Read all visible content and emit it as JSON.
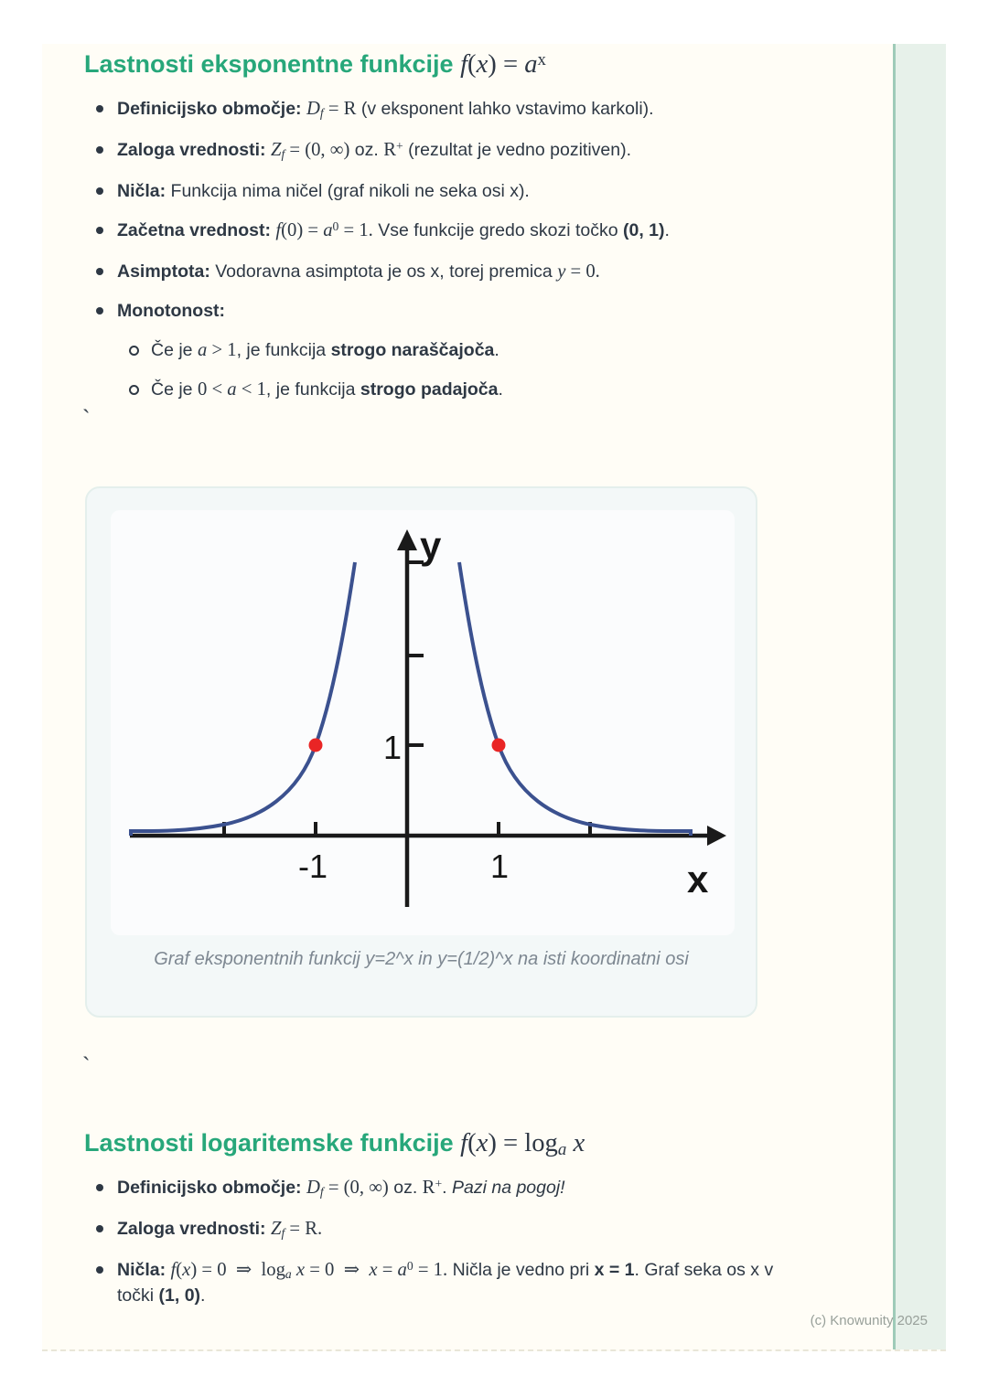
{
  "sections": [
    {
      "heading_label": "Lastnosti eksponentne funkcije ",
      "heading_math": [
        {
          "t": "f",
          "s": "mi"
        },
        {
          "t": "(",
          "s": "m"
        },
        {
          "t": "x",
          "s": "mi"
        },
        {
          "t": ") = ",
          "s": "m"
        },
        {
          "t": "a",
          "s": "mi"
        },
        {
          "t": "x",
          "s": "msup"
        }
      ],
      "bullets": [
        {
          "segments": [
            {
              "t": "Definicijsko območje: ",
              "s": "b"
            },
            {
              "t": "D",
              "s": "mi"
            },
            {
              "t": "f",
              "s": "misub"
            },
            {
              "t": " = R",
              "s": "m"
            },
            {
              "t": " (v eksponent lahko vstavimo karkoli).",
              "s": "r"
            }
          ]
        },
        {
          "segments": [
            {
              "t": "Zaloga vrednosti: ",
              "s": "b"
            },
            {
              "t": "Z",
              "s": "mi"
            },
            {
              "t": "f",
              "s": "misub"
            },
            {
              "t": " = (0, ∞)",
              "s": "m"
            },
            {
              "t": " oz. ",
              "s": "r"
            },
            {
              "t": "R",
              "s": "m"
            },
            {
              "t": "+",
              "s": "msup"
            },
            {
              "t": " (rezultat je vedno pozitiven).",
              "s": "r"
            }
          ]
        },
        {
          "segments": [
            {
              "t": "Ničla: ",
              "s": "b"
            },
            {
              "t": "Funkcija nima ničel (graf nikoli ne seka osi x).",
              "s": "r"
            }
          ]
        },
        {
          "segments": [
            {
              "t": "Začetna vrednost: ",
              "s": "b"
            },
            {
              "t": "f",
              "s": "mi"
            },
            {
              "t": "(0) = ",
              "s": "m"
            },
            {
              "t": "a",
              "s": "mi"
            },
            {
              "t": "0",
              "s": "msup"
            },
            {
              "t": " = 1.",
              "s": "m"
            },
            {
              "t": " Vse funkcije gredo skozi točko ",
              "s": "r"
            },
            {
              "t": "(0, 1)",
              "s": "b"
            },
            {
              "t": ".",
              "s": "r"
            }
          ]
        },
        {
          "segments": [
            {
              "t": "Asimptota: ",
              "s": "b"
            },
            {
              "t": "Vodoravna asimptota je os x, torej premica ",
              "s": "r"
            },
            {
              "t": "y",
              "s": "mi"
            },
            {
              "t": " = 0.",
              "s": "m"
            }
          ]
        },
        {
          "segments": [
            {
              "t": "Monotonost:",
              "s": "b"
            }
          ]
        },
        {
          "indent": 1,
          "segments": [
            {
              "t": "Če je ",
              "s": "r"
            },
            {
              "t": "a",
              "s": "mi"
            },
            {
              "t": " > 1",
              "s": "m"
            },
            {
              "t": ", je funkcija ",
              "s": "r"
            },
            {
              "t": "strogo naraščajoča",
              "s": "b"
            },
            {
              "t": ".",
              "s": "r"
            }
          ]
        },
        {
          "indent": 1,
          "segments": [
            {
              "t": "Če je ",
              "s": "r"
            },
            {
              "t": "0 < ",
              "s": "m"
            },
            {
              "t": "a",
              "s": "mi"
            },
            {
              "t": " < 1",
              "s": "m"
            },
            {
              "t": ", je funkcija ",
              "s": "r"
            },
            {
              "t": "strogo padajoča",
              "s": "b"
            },
            {
              "t": ".",
              "s": "r"
            }
          ]
        }
      ]
    },
    {
      "heading_label": "Lastnosti logaritemske funkcije ",
      "heading_math": [
        {
          "t": "f",
          "s": "mi"
        },
        {
          "t": "(",
          "s": "m"
        },
        {
          "t": "x",
          "s": "mi"
        },
        {
          "t": ") = log",
          "s": "m"
        },
        {
          "t": "a",
          "s": "misub"
        },
        {
          "t": " x",
          "s": "mi"
        }
      ],
      "bullets": [
        {
          "segments": [
            {
              "t": "Definicijsko območje: ",
              "s": "b"
            },
            {
              "t": "D",
              "s": "mi"
            },
            {
              "t": "f",
              "s": "misub"
            },
            {
              "t": " = (0, ∞)",
              "s": "m"
            },
            {
              "t": " oz. ",
              "s": "r"
            },
            {
              "t": "R",
              "s": "m"
            },
            {
              "t": "+",
              "s": "msup"
            },
            {
              "t": ". ",
              "s": "r"
            },
            {
              "t": "Pazi na pogoj!",
              "s": "i"
            }
          ]
        },
        {
          "segments": [
            {
              "t": "Zaloga vrednosti: ",
              "s": "b"
            },
            {
              "t": "Z",
              "s": "mi"
            },
            {
              "t": "f",
              "s": "misub"
            },
            {
              "t": " = R.",
              "s": "m"
            }
          ]
        },
        {
          "segments": [
            {
              "t": "Ničla: ",
              "s": "b"
            },
            {
              "t": "f",
              "s": "mi"
            },
            {
              "t": "(",
              "s": "m"
            },
            {
              "t": "x",
              "s": "mi"
            },
            {
              "t": ") = 0",
              "s": "m"
            },
            {
              "t": " ⇒ ",
              "s": "m"
            },
            {
              "t": "log",
              "s": "m"
            },
            {
              "t": "a",
              "s": "misub"
            },
            {
              "t": " x",
              "s": "mi"
            },
            {
              "t": " = 0",
              "s": "m"
            },
            {
              "t": " ⇒ ",
              "s": "m"
            },
            {
              "t": "x",
              "s": "mi"
            },
            {
              "t": " = ",
              "s": "m"
            },
            {
              "t": "a",
              "s": "mi"
            },
            {
              "t": "0",
              "s": "msup"
            },
            {
              "t": " = 1.",
              "s": "m"
            },
            {
              "t": " Ničla je vedno pri ",
              "s": "r"
            },
            {
              "t": "x = 1",
              "s": "b"
            },
            {
              "t": ". Graf seka os x v točki ",
              "s": "r"
            },
            {
              "t": "(1, 0)",
              "s": "b"
            },
            {
              "t": ".",
              "s": "r"
            }
          ]
        }
      ]
    }
  ],
  "stray_marks": [
    "`",
    "`"
  ],
  "figure": {
    "caption": "Graf eksponentnih funkcij y=2^x in y=(1/2)^x na isti koordinatni osi",
    "x_axis_label": "x",
    "y_axis_label": "y",
    "x_tick_label_neg1": "-1",
    "x_tick_label_pos1": "1",
    "y_tick_label_1": "1"
  },
  "chart_data": {
    "type": "line",
    "title": "",
    "caption": "Graf eksponentnih funkcij y=2^x in y=(1/2)^x na isti koordinatni osi",
    "xlabel": "x",
    "ylabel": "y",
    "xlim": [
      -3.2,
      3.5
    ],
    "ylim": [
      0,
      3.3
    ],
    "x_ticks": [
      -2,
      -1,
      1,
      2
    ],
    "x_tick_labels_shown": [
      "-1",
      "1"
    ],
    "y_ticks": [
      1,
      2,
      3
    ],
    "y_tick_labels_shown": [
      "1"
    ],
    "grid": false,
    "legend": "none",
    "series": [
      {
        "name": "y=2^x",
        "points": [
          [
            -3.0,
            0.06
          ],
          [
            -2.0,
            0.18
          ],
          [
            -1.5,
            0.45
          ],
          [
            -1.0,
            1.0
          ],
          [
            -0.8,
            1.6
          ],
          [
            -0.6,
            3.0
          ]
        ]
      },
      {
        "name": "y=(1/2)^x",
        "points": [
          [
            0.6,
            3.0
          ],
          [
            0.8,
            1.6
          ],
          [
            1.0,
            1.0
          ],
          [
            1.5,
            0.45
          ],
          [
            2.0,
            0.18
          ],
          [
            3.0,
            0.06
          ]
        ]
      }
    ],
    "marked_points": [
      [
        -1,
        1
      ],
      [
        1,
        1
      ]
    ]
  },
  "colors": {
    "accent_green": "#27a77a",
    "body_text": "#2e3844",
    "curve_blue": "#3b518f",
    "point_red": "#e92525",
    "strip_fill": "#e7f1ea",
    "strip_edge": "#9fcbb8",
    "page_bg": "#fffdf6",
    "card_bg": "#f3f8f8",
    "caption_gray": "#7d8791"
  },
  "footer": {
    "copyright": "(c) Knowunity 2025"
  }
}
